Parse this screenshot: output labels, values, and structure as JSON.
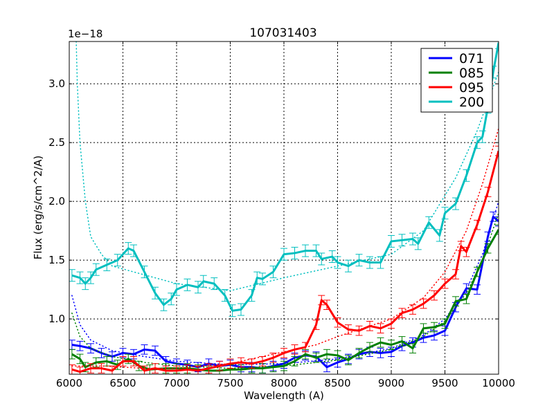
{
  "chart_data": {
    "type": "line",
    "title": "107031403",
    "xlabel": "Wavelength (A)",
    "ylabel": "Flux (erg/s/cm^2/A)",
    "y_offset_label": "1e−18",
    "xlim": [
      6000,
      10000
    ],
    "ylim": [
      0.53,
      3.36
    ],
    "xticks": [
      6000,
      6500,
      7000,
      7500,
      8000,
      8500,
      9000,
      9500,
      10000
    ],
    "yticks": [
      "1.0",
      "1.5",
      "2.0",
      "2.5",
      "3.0"
    ],
    "ytick_values": [
      1.0,
      1.5,
      2.0,
      2.5,
      3.0
    ],
    "grid": true,
    "legend_position": "top-right",
    "series": [
      {
        "name": "071",
        "color": "#0000ff",
        "err": 0.04,
        "x": [
          6025,
          6100,
          6200,
          6300,
          6400,
          6500,
          6600,
          6700,
          6800,
          6900,
          7000,
          7100,
          7200,
          7300,
          7400,
          7500,
          7600,
          7700,
          7800,
          7900,
          8000,
          8100,
          8200,
          8300,
          8400,
          8500,
          8600,
          8700,
          8800,
          8900,
          9000,
          9100,
          9200,
          9300,
          9400,
          9500,
          9600,
          9700,
          9800,
          9900,
          9950,
          10000
        ],
        "y": [
          0.78,
          0.77,
          0.75,
          0.71,
          0.68,
          0.71,
          0.7,
          0.74,
          0.73,
          0.64,
          0.62,
          0.61,
          0.59,
          0.62,
          0.6,
          0.61,
          0.59,
          0.59,
          0.58,
          0.6,
          0.62,
          0.67,
          0.69,
          0.68,
          0.59,
          0.63,
          0.66,
          0.7,
          0.72,
          0.71,
          0.72,
          0.77,
          0.8,
          0.84,
          0.86,
          0.9,
          1.1,
          1.26,
          1.25,
          1.7,
          1.87,
          1.83
        ],
        "model_x": [
          6025,
          6100,
          6200,
          6400,
          6700,
          7000,
          7500,
          8000,
          8500,
          9000,
          9300,
          9500,
          9700,
          9850,
          10000
        ],
        "model_y": [
          1.2,
          0.95,
          0.82,
          0.73,
          0.68,
          0.64,
          0.61,
          0.62,
          0.66,
          0.75,
          0.86,
          1.0,
          1.25,
          1.55,
          2.0
        ]
      },
      {
        "name": "085",
        "color": "#008000",
        "err": 0.04,
        "x": [
          6025,
          6100,
          6150,
          6250,
          6350,
          6450,
          6550,
          6650,
          6750,
          6900,
          7000,
          7100,
          7200,
          7300,
          7400,
          7500,
          7600,
          7700,
          7800,
          7900,
          8000,
          8100,
          8200,
          8300,
          8400,
          8500,
          8600,
          8700,
          8800,
          8900,
          9000,
          9100,
          9200,
          9300,
          9400,
          9500,
          9600,
          9700,
          9800,
          9900,
          10000
        ],
        "y": [
          0.7,
          0.66,
          0.59,
          0.63,
          0.64,
          0.61,
          0.66,
          0.6,
          0.57,
          0.58,
          0.58,
          0.58,
          0.57,
          0.56,
          0.56,
          0.57,
          0.57,
          0.58,
          0.58,
          0.59,
          0.6,
          0.64,
          0.7,
          0.67,
          0.7,
          0.69,
          0.65,
          0.71,
          0.76,
          0.8,
          0.78,
          0.81,
          0.75,
          0.92,
          0.93,
          0.96,
          1.15,
          1.17,
          1.4,
          1.6,
          1.76
        ],
        "model_x": [
          6025,
          6100,
          6200,
          6400,
          6700,
          7000,
          7500,
          8000,
          8500,
          9000,
          9300,
          9500,
          9700,
          9850,
          10000
        ],
        "model_y": [
          1.05,
          0.85,
          0.75,
          0.68,
          0.63,
          0.6,
          0.58,
          0.6,
          0.65,
          0.74,
          0.85,
          0.98,
          1.22,
          1.5,
          1.9
        ]
      },
      {
        "name": "095",
        "color": "#ff0000",
        "err": 0.04,
        "x": [
          6025,
          6100,
          6200,
          6300,
          6400,
          6500,
          6600,
          6700,
          6800,
          6900,
          7000,
          7100,
          7200,
          7300,
          7400,
          7500,
          7600,
          7700,
          7800,
          7900,
          8000,
          8100,
          8200,
          8300,
          8350,
          8400,
          8500,
          8600,
          8700,
          8800,
          8900,
          9000,
          9100,
          9200,
          9300,
          9400,
          9500,
          9600,
          9650,
          9700,
          9800,
          9900,
          10000
        ],
        "y": [
          0.57,
          0.55,
          0.58,
          0.58,
          0.56,
          0.64,
          0.64,
          0.56,
          0.58,
          0.56,
          0.56,
          0.57,
          0.56,
          0.58,
          0.6,
          0.62,
          0.63,
          0.62,
          0.64,
          0.67,
          0.71,
          0.74,
          0.76,
          0.95,
          1.16,
          1.12,
          0.97,
          0.91,
          0.9,
          0.94,
          0.92,
          0.96,
          1.05,
          1.08,
          1.13,
          1.2,
          1.3,
          1.38,
          1.62,
          1.57,
          1.8,
          2.08,
          2.43
        ],
        "model_x": [
          6025,
          6300,
          6700,
          7000,
          7500,
          8000,
          8300,
          8500,
          9000,
          9300,
          9500,
          9700,
          9850,
          10000
        ],
        "model_y": [
          0.6,
          0.6,
          0.58,
          0.58,
          0.62,
          0.72,
          0.78,
          0.85,
          1.0,
          1.18,
          1.4,
          1.75,
          2.15,
          2.62
        ]
      },
      {
        "name": "200",
        "color": "#00bfbf",
        "err": 0.05,
        "x": [
          6025,
          6100,
          6150,
          6200,
          6250,
          6350,
          6450,
          6550,
          6600,
          6700,
          6800,
          6880,
          6950,
          7000,
          7100,
          7200,
          7250,
          7350,
          7450,
          7520,
          7600,
          7700,
          7750,
          7800,
          7900,
          8000,
          8100,
          8200,
          8300,
          8350,
          8450,
          8500,
          8600,
          8700,
          8800,
          8900,
          9000,
          9100,
          9200,
          9250,
          9350,
          9450,
          9500,
          9600,
          9700,
          9800,
          9850,
          9900,
          9950,
          10000
        ],
        "y": [
          1.37,
          1.35,
          1.3,
          1.35,
          1.42,
          1.46,
          1.5,
          1.6,
          1.58,
          1.4,
          1.22,
          1.12,
          1.17,
          1.25,
          1.29,
          1.27,
          1.32,
          1.3,
          1.2,
          1.07,
          1.08,
          1.2,
          1.35,
          1.34,
          1.4,
          1.55,
          1.56,
          1.58,
          1.58,
          1.51,
          1.53,
          1.48,
          1.45,
          1.5,
          1.48,
          1.48,
          1.66,
          1.67,
          1.68,
          1.64,
          1.82,
          1.71,
          1.9,
          1.98,
          2.22,
          2.5,
          2.55,
          2.8,
          3.1,
          3.35
        ],
        "model_x": [
          6065,
          6075,
          6100,
          6150,
          6200,
          6300,
          6400,
          6600,
          7000,
          7500,
          8000,
          8500,
          9000,
          9300,
          9600,
          9800,
          10000
        ],
        "model_y": [
          3.36,
          3.0,
          2.5,
          2.0,
          1.7,
          1.55,
          1.45,
          1.4,
          1.3,
          1.24,
          1.35,
          1.45,
          1.55,
          1.75,
          2.2,
          2.6,
          3.1
        ]
      }
    ]
  }
}
